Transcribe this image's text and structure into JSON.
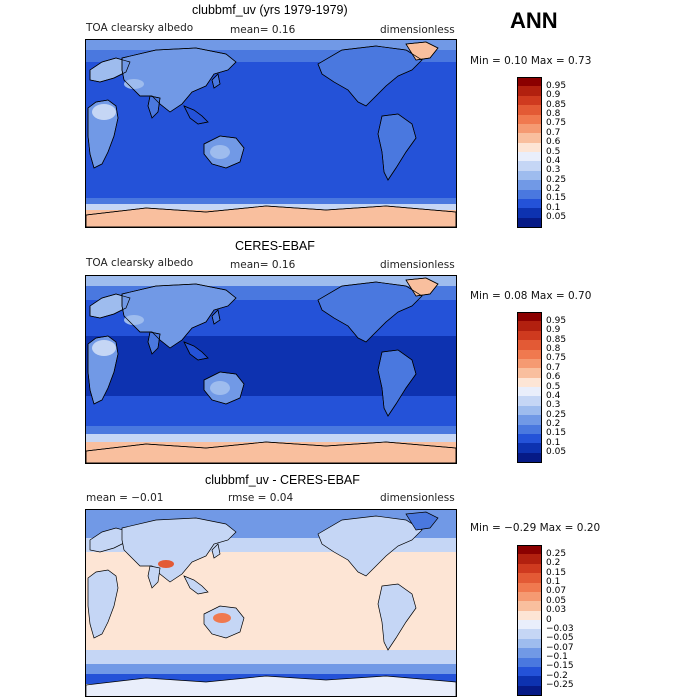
{
  "season": "ANN",
  "panels": [
    {
      "title": "clubbmf_uv (yrs 1979-1979)",
      "variable": "TOA clearsky albedo",
      "stat": "mean=   0.16",
      "units": "dimensionless",
      "minmax": "Min =    0.10  Max =    0.73",
      "colorbar_labels": [
        "0.95",
        "0.9",
        "0.85",
        "0.8",
        "0.75",
        "0.7",
        "0.6",
        "0.5",
        "0.4",
        "0.3",
        "0.25",
        "0.2",
        "0.15",
        "0.1",
        "0.05"
      ],
      "colorbar_colors": [
        "#8b0000",
        "#b2200f",
        "#cf3a1f",
        "#e35a35",
        "#f0794f",
        "#f59a72",
        "#f9bf9e",
        "#fde5d5",
        "#e9eefb",
        "#c5d6f5",
        "#9ebcee",
        "#7199e6",
        "#4a78df",
        "#2452d8",
        "#0d32b0",
        "#061a86"
      ],
      "map_type": "model"
    },
    {
      "title": "CERES-EBAF",
      "variable": "TOA clearsky albedo",
      "stat": "mean=   0.16",
      "units": "dimensionless",
      "minmax": "Min =    0.08  Max =    0.70",
      "colorbar_labels": [
        "0.95",
        "0.9",
        "0.85",
        "0.8",
        "0.75",
        "0.7",
        "0.6",
        "0.5",
        "0.4",
        "0.3",
        "0.25",
        "0.2",
        "0.15",
        "0.1",
        "0.05"
      ],
      "colorbar_colors": [
        "#8b0000",
        "#b2200f",
        "#cf3a1f",
        "#e35a35",
        "#f0794f",
        "#f59a72",
        "#f9bf9e",
        "#fde5d5",
        "#e9eefb",
        "#c5d6f5",
        "#9ebcee",
        "#7199e6",
        "#4a78df",
        "#2452d8",
        "#0d32b0",
        "#061a86"
      ],
      "map_type": "obs"
    },
    {
      "title": "clubbmf_uv - CERES-EBAF",
      "stat": "mean =   −0.01",
      "rmse": "rmse =   0.04",
      "units": "dimensionless",
      "minmax": "Min =   −0.29  Max =    0.20",
      "colorbar_labels": [
        "0.25",
        "0.2",
        "0.15",
        "0.1",
        "0.07",
        "0.05",
        "0.03",
        "0",
        "−0.03",
        "−0.05",
        "−0.07",
        "−0.1",
        "−0.15",
        "−0.2",
        "−0.25"
      ],
      "colorbar_colors": [
        "#8b0000",
        "#b2200f",
        "#cf3a1f",
        "#e35a35",
        "#f0794f",
        "#f59a72",
        "#f9bf9e",
        "#fde5d5",
        "#e9eefb",
        "#c5d6f5",
        "#9ebcee",
        "#7199e6",
        "#4a78df",
        "#2452d8",
        "#0d32b0",
        "#061a86"
      ],
      "map_type": "diff"
    }
  ],
  "chart_data": [
    {
      "type": "heatmap",
      "title": "clubbmf_uv (yrs 1979-1979)",
      "mean": 0.16,
      "min": 0.1,
      "max": 0.73,
      "levels": [
        0.05,
        0.1,
        0.15,
        0.2,
        0.25,
        0.3,
        0.4,
        0.5,
        0.6,
        0.7,
        0.75,
        0.8,
        0.85,
        0.9,
        0.95
      ]
    },
    {
      "type": "heatmap",
      "title": "CERES-EBAF",
      "mean": 0.16,
      "min": 0.08,
      "max": 0.7,
      "levels": [
        0.05,
        0.1,
        0.15,
        0.2,
        0.25,
        0.3,
        0.4,
        0.5,
        0.6,
        0.7,
        0.75,
        0.8,
        0.85,
        0.9,
        0.95
      ]
    },
    {
      "type": "heatmap",
      "title": "clubbmf_uv - CERES-EBAF",
      "mean": -0.01,
      "rmse": 0.04,
      "min": -0.29,
      "max": 0.2,
      "levels": [
        -0.25,
        -0.2,
        -0.15,
        -0.1,
        -0.07,
        -0.05,
        -0.03,
        0,
        0.03,
        0.05,
        0.07,
        0.1,
        0.15,
        0.2,
        0.25
      ]
    }
  ]
}
